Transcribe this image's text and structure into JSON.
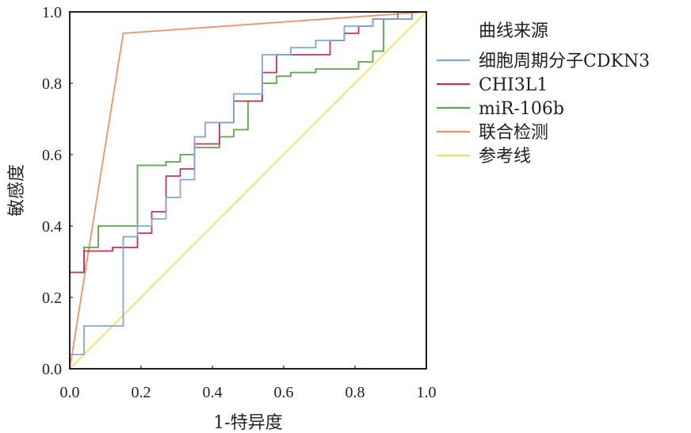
{
  "chart_data": {
    "type": "line",
    "title": "",
    "xlabel": "1-特异度",
    "ylabel": "敏感度",
    "xlim": [
      0,
      1
    ],
    "ylim": [
      0,
      1
    ],
    "xticks": [
      "0.0",
      "0.2",
      "0.4",
      "0.6",
      "0.8",
      "1.0"
    ],
    "yticks": [
      "0.0",
      "0.2",
      "0.4",
      "0.6",
      "0.8",
      "1.0"
    ],
    "grid": false,
    "legend_title": "曲线来源",
    "legend_position": "right",
    "series": [
      {
        "name": "细胞周期分子CDKN3",
        "color": "#7ea9d6",
        "x": [
          0,
          0,
          0.04,
          0.04,
          0.15,
          0.15,
          0.19,
          0.19,
          0.23,
          0.23,
          0.27,
          0.27,
          0.31,
          0.31,
          0.35,
          0.35,
          0.38,
          0.38,
          0.46,
          0.46,
          0.54,
          0.54,
          0.62,
          0.62,
          0.69,
          0.69,
          0.77,
          0.77,
          0.85,
          0.85,
          0.96,
          0.96,
          1.0
        ],
        "y": [
          0,
          0.04,
          0.04,
          0.12,
          0.12,
          0.37,
          0.37,
          0.4,
          0.4,
          0.42,
          0.42,
          0.48,
          0.48,
          0.53,
          0.53,
          0.65,
          0.65,
          0.69,
          0.69,
          0.77,
          0.77,
          0.88,
          0.88,
          0.9,
          0.9,
          0.92,
          0.92,
          0.96,
          0.96,
          0.98,
          0.98,
          1.0,
          1.0
        ]
      },
      {
        "name": "CHI3L1",
        "color": "#c9305e",
        "x": [
          0,
          0,
          0.04,
          0.04,
          0.12,
          0.12,
          0.19,
          0.19,
          0.23,
          0.23,
          0.27,
          0.27,
          0.31,
          0.31,
          0.35,
          0.35,
          0.42,
          0.42,
          0.46,
          0.46,
          0.54,
          0.54,
          0.58,
          0.58,
          0.73,
          0.73,
          0.77,
          0.77,
          0.81,
          0.81,
          0.85,
          0.85,
          0.96,
          0.96,
          1.0
        ],
        "y": [
          0,
          0.27,
          0.27,
          0.33,
          0.33,
          0.34,
          0.34,
          0.38,
          0.38,
          0.44,
          0.44,
          0.54,
          0.54,
          0.56,
          0.56,
          0.63,
          0.63,
          0.69,
          0.69,
          0.75,
          0.75,
          0.83,
          0.83,
          0.88,
          0.88,
          0.92,
          0.92,
          0.94,
          0.94,
          0.96,
          0.96,
          0.98,
          0.98,
          1.0,
          1.0
        ]
      },
      {
        "name": "miR-106b",
        "color": "#5da54d",
        "x": [
          0,
          0,
          0.04,
          0.04,
          0.08,
          0.08,
          0.19,
          0.19,
          0.27,
          0.27,
          0.31,
          0.31,
          0.35,
          0.35,
          0.38,
          0.38,
          0.42,
          0.42,
          0.46,
          0.46,
          0.5,
          0.5,
          0.54,
          0.54,
          0.58,
          0.58,
          0.62,
          0.62,
          0.69,
          0.69,
          0.81,
          0.81,
          0.85,
          0.85,
          0.88,
          0.88,
          0.92,
          0.92,
          1.0
        ],
        "y": [
          0,
          0.27,
          0.27,
          0.34,
          0.34,
          0.4,
          0.4,
          0.57,
          0.57,
          0.58,
          0.58,
          0.6,
          0.6,
          0.62,
          0.62,
          0.62,
          0.62,
          0.65,
          0.65,
          0.67,
          0.67,
          0.75,
          0.75,
          0.8,
          0.8,
          0.82,
          0.82,
          0.83,
          0.83,
          0.84,
          0.84,
          0.86,
          0.86,
          0.89,
          0.89,
          0.98,
          0.98,
          1.0,
          1.0
        ]
      },
      {
        "name": "联合检测",
        "color": "#f0916a",
        "x": [
          0,
          0.15,
          1.0
        ],
        "y": [
          0,
          0.94,
          1.0
        ]
      },
      {
        "name": "参考线",
        "color": "#f2e15a",
        "x": [
          0,
          1
        ],
        "y": [
          0,
          1
        ]
      }
    ]
  }
}
